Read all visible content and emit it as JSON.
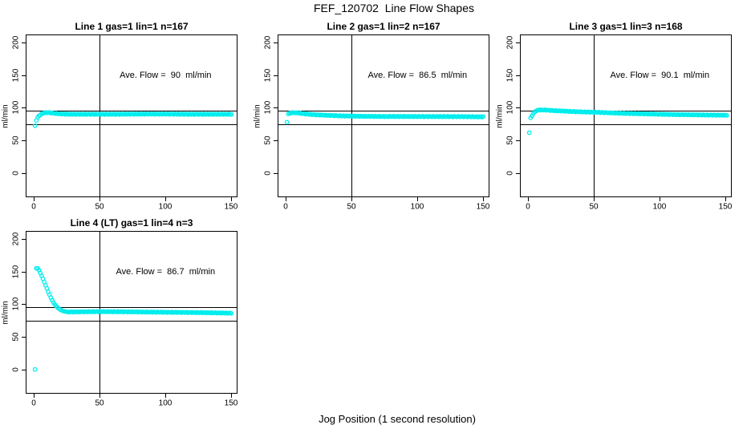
{
  "page": {
    "title": "FEF_120702  Line Flow Shapes",
    "xlabel": "Jog Position (1 second resolution)",
    "ylabel": "ml/min"
  },
  "colors": {
    "points": "#00EDED",
    "axis": "#000000",
    "background": "#FFFFFF"
  },
  "chart_data": [
    {
      "type": "scatter",
      "title": "Line 1 gas=1 lin=1 n=167",
      "annotation": "Ave. Flow =  90  ml/min",
      "ave_flow": 90,
      "n": 167,
      "xlim": [
        -5.5,
        154
      ],
      "ylim": [
        -36,
        211
      ],
      "x_ticks": [
        0,
        50,
        100,
        150
      ],
      "y_ticks": [
        0,
        50,
        100,
        150,
        200
      ],
      "ref_line_x": 50,
      "ref_lines_y": [
        95,
        75
      ],
      "annotation_at": [
        100,
        150
      ],
      "profile_points": [
        [
          1,
          72
        ],
        [
          2,
          81
        ],
        [
          3,
          85
        ],
        [
          4,
          87.5
        ],
        [
          5,
          89
        ],
        [
          6,
          90.5
        ],
        [
          7,
          91.5
        ],
        [
          9,
          92.5
        ],
        [
          12,
          92.5
        ],
        [
          15,
          91.5
        ],
        [
          20,
          90.5
        ],
        [
          28,
          90
        ],
        [
          60,
          90
        ],
        [
          90,
          90.3
        ],
        [
          120,
          90
        ],
        [
          150,
          90
        ]
      ]
    },
    {
      "type": "scatter",
      "title": "Line 2 gas=1 lin=2 n=167",
      "annotation": "Ave. Flow =  86.5  ml/min",
      "ave_flow": 86.5,
      "n": 167,
      "xlim": [
        -5.5,
        154
      ],
      "ylim": [
        -36,
        211
      ],
      "x_ticks": [
        0,
        50,
        100,
        150
      ],
      "y_ticks": [
        0,
        50,
        100,
        150,
        200
      ],
      "ref_line_x": 50,
      "ref_lines_y": [
        95,
        75
      ],
      "annotation_at": [
        100,
        150
      ],
      "profile_points": [
        [
          1,
          78
        ],
        [
          2,
          90.5
        ],
        [
          3,
          91.5
        ],
        [
          4,
          92
        ],
        [
          6,
          92.5
        ],
        [
          9,
          92
        ],
        [
          13,
          91
        ],
        [
          20,
          89.5
        ],
        [
          30,
          88.5
        ],
        [
          42,
          87.5
        ],
        [
          55,
          87
        ],
        [
          70,
          86.6
        ],
        [
          100,
          86.5
        ],
        [
          130,
          86.4
        ],
        [
          150,
          86
        ]
      ]
    },
    {
      "type": "scatter",
      "title": "Line 3 gas=1 lin=3 n=168",
      "annotation": "Ave. Flow =  90.1  ml/min",
      "ave_flow": 90.1,
      "n": 168,
      "xlim": [
        -5.5,
        154
      ],
      "ylim": [
        -36,
        211
      ],
      "x_ticks": [
        0,
        50,
        100,
        150
      ],
      "y_ticks": [
        0,
        50,
        100,
        150,
        200
      ],
      "ref_line_x": 50,
      "ref_lines_y": [
        95,
        75
      ],
      "annotation_at": [
        100,
        150
      ],
      "profile_points": [
        [
          1,
          62
        ],
        [
          2,
          84
        ],
        [
          3,
          88
        ],
        [
          4,
          91
        ],
        [
          5,
          93.5
        ],
        [
          6,
          95
        ],
        [
          8,
          96.5
        ],
        [
          13,
          96.5
        ],
        [
          20,
          95.5
        ],
        [
          30,
          94.5
        ],
        [
          42,
          93.5
        ],
        [
          52,
          93
        ],
        [
          70,
          91.5
        ],
        [
          90,
          90.5
        ],
        [
          110,
          89.5
        ],
        [
          130,
          89
        ],
        [
          151,
          88.5
        ]
      ]
    },
    {
      "type": "scatter",
      "title": "Line 4 (LT) gas=1 lin=4 n=3",
      "annotation": "Ave. Flow =  86.7  ml/min",
      "ave_flow": 86.7,
      "n": 3,
      "xlim": [
        -5.5,
        154
      ],
      "ylim": [
        -36,
        211
      ],
      "x_ticks": [
        0,
        50,
        100,
        150
      ],
      "y_ticks": [
        0,
        50,
        100,
        150,
        200
      ],
      "ref_line_x": 50,
      "ref_lines_y": [
        95,
        75
      ],
      "annotation_at": [
        100,
        150
      ],
      "profile_points": [
        [
          1,
          0
        ],
        [
          2,
          155
        ],
        [
          3,
          155
        ],
        [
          4,
          152
        ],
        [
          5,
          148
        ],
        [
          6,
          143.5
        ],
        [
          7,
          139
        ],
        [
          8,
          134
        ],
        [
          9,
          129
        ],
        [
          10,
          124
        ],
        [
          11,
          119
        ],
        [
          12,
          114.5
        ],
        [
          13,
          110
        ],
        [
          14,
          106
        ],
        [
          15,
          102.5
        ],
        [
          16,
          99.5
        ],
        [
          17,
          97
        ],
        [
          18,
          95
        ],
        [
          19,
          93.2
        ],
        [
          20,
          91.8
        ],
        [
          21,
          90.7
        ],
        [
          22,
          89.8
        ],
        [
          23,
          89.2
        ],
        [
          24,
          88.7
        ],
        [
          25,
          88.3
        ],
        [
          27,
          88
        ],
        [
          35,
          88.2
        ],
        [
          50,
          88.6
        ],
        [
          70,
          88.3
        ],
        [
          90,
          87.8
        ],
        [
          110,
          87.4
        ],
        [
          130,
          87
        ],
        [
          150,
          86.2
        ]
      ]
    }
  ]
}
